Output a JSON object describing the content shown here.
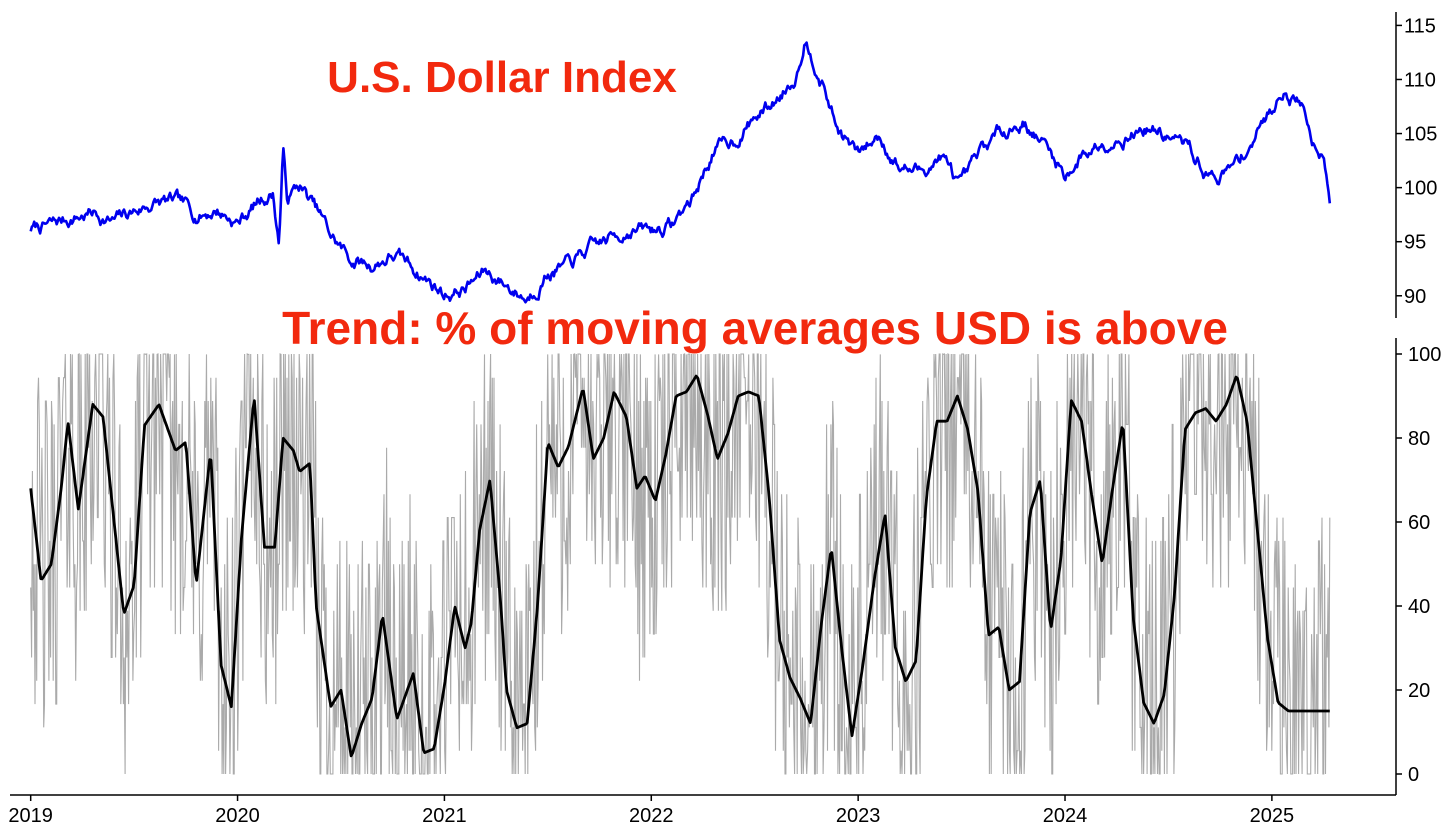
{
  "chart_data": [
    {
      "type": "line",
      "title": "U.S. Dollar Index",
      "y_axis_side": "right",
      "ylim": [
        88.5,
        115.5
      ],
      "yticks": [
        90,
        95,
        100,
        105,
        110,
        115
      ],
      "grid": false,
      "series": [
        {
          "color": "#0000ee",
          "x": [
            2019.0,
            2019.1,
            2019.2,
            2019.3,
            2019.4,
            2019.5,
            2019.6,
            2019.7,
            2019.8,
            2019.9,
            2020.0,
            2020.1,
            2020.17,
            2020.2,
            2020.22,
            2020.24,
            2020.3,
            2020.4,
            2020.45,
            2020.55,
            2020.65,
            2020.75,
            2020.85,
            2021.0,
            2021.1,
            2021.2,
            2021.3,
            2021.4,
            2021.5,
            2021.6,
            2021.7,
            2021.8,
            2021.9,
            2022.0,
            2022.1,
            2022.2,
            2022.3,
            2022.4,
            2022.5,
            2022.6,
            2022.7,
            2022.74,
            2022.8,
            2022.9,
            2023.0,
            2023.1,
            2023.2,
            2023.3,
            2023.4,
            2023.5,
            2023.6,
            2023.7,
            2023.8,
            2023.9,
            2024.0,
            2024.1,
            2024.2,
            2024.3,
            2024.4,
            2024.5,
            2024.6,
            2024.7,
            2024.8,
            2024.9,
            2025.0,
            2025.05,
            2025.15,
            2025.2,
            2025.25,
            2025.28
          ],
          "y": [
            96.2,
            96.5,
            97.2,
            97.7,
            96.8,
            97.8,
            98.6,
            98.6,
            97.5,
            98.0,
            96.8,
            98.7,
            99.6,
            95.0,
            103.5,
            99.0,
            100.2,
            97.3,
            95.5,
            93.3,
            92.8,
            93.8,
            92.6,
            90.2,
            90.7,
            92.3,
            91.0,
            89.8,
            92.3,
            92.7,
            94.2,
            95.2,
            96.3,
            96.0,
            96.6,
            99.0,
            103.4,
            104.4,
            106.5,
            108.0,
            110.6,
            114.0,
            111.5,
            105.5,
            103.0,
            104.8,
            102.0,
            101.5,
            103.0,
            99.8,
            103.2,
            105.4,
            106.2,
            104.0,
            101.2,
            103.3,
            104.5,
            105.0,
            105.6,
            104.7,
            103.6,
            101.0,
            101.5,
            104.3,
            107.3,
            109.3,
            107.6,
            104.5,
            103.6,
            99.6
          ]
        }
      ]
    },
    {
      "type": "line",
      "title": "Trend: % of moving averages USD is above",
      "y_axis_side": "right",
      "ylim": [
        -5,
        103
      ],
      "yticks": [
        0,
        20,
        40,
        60,
        80,
        100
      ],
      "xlim": [
        2018.9,
        2025.6
      ],
      "xticks": [
        "2019",
        "2020",
        "2021",
        "2022",
        "2023",
        "2024",
        "2025"
      ],
      "grid": false,
      "series": [
        {
          "color": "#000000",
          "x": [
            2019.0,
            2019.05,
            2019.1,
            2019.15,
            2019.18,
            2019.23,
            2019.3,
            2019.35,
            2019.45,
            2019.5,
            2019.55,
            2019.62,
            2019.7,
            2019.75,
            2019.8,
            2019.87,
            2019.92,
            2019.97,
            2020.02,
            2020.08,
            2020.13,
            2020.18,
            2020.22,
            2020.27,
            2020.3,
            2020.35,
            2020.38,
            2020.45,
            2020.5,
            2020.55,
            2020.6,
            2020.65,
            2020.7,
            2020.77,
            2020.85,
            2020.9,
            2020.95,
            2021.0,
            2021.05,
            2021.1,
            2021.13,
            2021.17,
            2021.22,
            2021.27,
            2021.3,
            2021.35,
            2021.4,
            2021.45,
            2021.5,
            2021.55,
            2021.6,
            2021.67,
            2021.72,
            2021.77,
            2021.82,
            2021.88,
            2021.93,
            2021.97,
            2022.02,
            2022.07,
            2022.12,
            2022.17,
            2022.22,
            2022.27,
            2022.32,
            2022.37,
            2022.42,
            2022.47,
            2022.52,
            2022.57,
            2022.62,
            2022.67,
            2022.72,
            2022.77,
            2022.82,
            2022.87,
            2022.92,
            2022.97,
            2023.02,
            2023.08,
            2023.13,
            2023.18,
            2023.23,
            2023.28,
            2023.33,
            2023.38,
            2023.43,
            2023.48,
            2023.53,
            2023.58,
            2023.63,
            2023.68,
            2023.73,
            2023.78,
            2023.83,
            2023.88,
            2023.93,
            2023.98,
            2024.03,
            2024.08,
            2024.13,
            2024.18,
            2024.23,
            2024.28,
            2024.33,
            2024.38,
            2024.43,
            2024.48,
            2024.53,
            2024.58,
            2024.63,
            2024.68,
            2024.73,
            2024.78,
            2024.83,
            2024.88,
            2024.93,
            2024.98,
            2025.03,
            2025.08,
            2025.13,
            2025.18,
            2025.23,
            2025.28
          ],
          "y": [
            68,
            46,
            50,
            69,
            84,
            63,
            88,
            85,
            38,
            45,
            83,
            88,
            77,
            79,
            45,
            77,
            26,
            16,
            57,
            90,
            54,
            54,
            80,
            77,
            72,
            74,
            40,
            16,
            20,
            4,
            12,
            18,
            38,
            13,
            24,
            5,
            6,
            21,
            40,
            30,
            36,
            58,
            70,
            42,
            20,
            11,
            12,
            40,
            79,
            73,
            78,
            92,
            75,
            80,
            91,
            85,
            68,
            71,
            65,
            76,
            90,
            91,
            95,
            86,
            75,
            81,
            90,
            91,
            90,
            66,
            32,
            23,
            18,
            12,
            35,
            54,
            30,
            9,
            25,
            47,
            62,
            30,
            22,
            27,
            66,
            84,
            84,
            90,
            82,
            67,
            33,
            35,
            20,
            22,
            62,
            70,
            34,
            51,
            89,
            84,
            66,
            50,
            68,
            84,
            37,
            17,
            12,
            19,
            43,
            82,
            86,
            87,
            84,
            88,
            95,
            84,
            58,
            32,
            17,
            15,
            15,
            15,
            15,
            15
          ]
        }
      ],
      "noise_series": {
        "color": "#aaaaaa",
        "description_range": [
          0,
          100
        ]
      }
    }
  ]
}
